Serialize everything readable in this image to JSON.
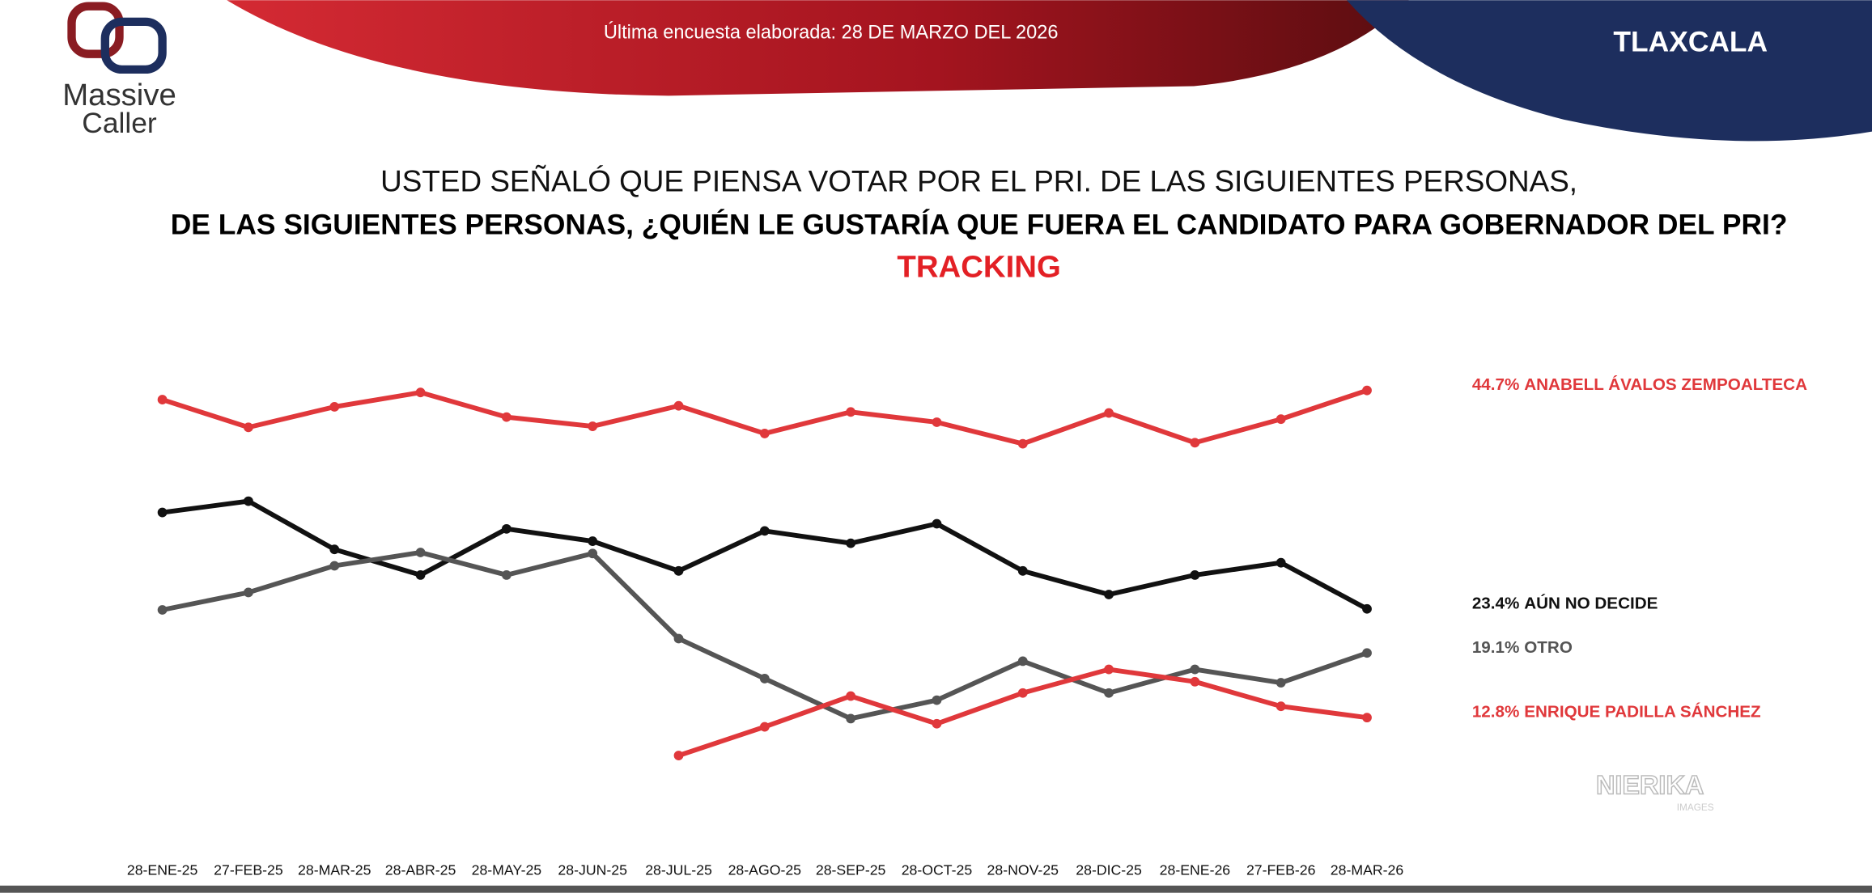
{
  "header": {
    "survey_date": "Última encuesta elaborada: 28 DE MARZO DEL 2026",
    "state": "TLAXCALA",
    "logo": [
      "Massive",
      "Caller"
    ]
  },
  "watermark": {
    "brand": "NIERIKA",
    "sub": "IMAGES"
  },
  "chart_data": {
    "type": "line",
    "title": "USTED SEÑALÓ QUE PIENSA VOTAR POR EL PRI. DE LAS SIGUIENTES PERSONAS,",
    "subtitle": "DE LAS SIGUIENTES PERSONAS, ¿QUIÉN LE GUSTARÍA QUE FUERA EL CANDIDATO PARA GOBERNADOR DEL PRI?",
    "annotation": "TRACKING",
    "categories": [
      "28-ENE-25",
      "27-FEB-25",
      "28-MAR-25",
      "28-ABR-25",
      "28-MAY-25",
      "28-JUN-25",
      "28-JUL-25",
      "28-AGO-25",
      "28-SEP-25",
      "28-OCT-25",
      "28-NOV-25",
      "28-DIC-25",
      "28-ENE-26",
      "27-FEB-26",
      "28-MAR-26"
    ],
    "series": [
      {
        "name": "ANABELL ÁVALOS ZEMPOALTECA",
        "color": "#e0383b",
        "values": [
          43.8,
          41.1,
          43.1,
          44.5,
          42.1,
          41.2,
          43.2,
          40.5,
          42.6,
          41.6,
          39.5,
          42.5,
          39.6,
          41.9,
          44.7
        ],
        "value_labels": [
          null,
          null,
          null,
          null,
          null,
          null,
          null,
          null,
          null,
          null,
          null,
          null,
          null,
          null,
          "44.7%"
        ]
      },
      {
        "name": "AÚN NO DECIDE",
        "color": "#111111",
        "values": [
          32.8,
          33.9,
          29.2,
          26.7,
          31.2,
          30.0,
          27.1,
          31.0,
          29.8,
          31.7,
          27.1,
          24.8,
          26.7,
          27.9,
          23.4
        ],
        "value_labels": [
          null,
          null,
          null,
          null,
          null,
          null,
          null,
          null,
          null,
          null,
          null,
          null,
          null,
          null,
          "23.4%"
        ]
      },
      {
        "name": "OTRO",
        "color": "#555555",
        "values": [
          23.3,
          25.0,
          27.6,
          28.9,
          26.7,
          28.8,
          20.5,
          16.6,
          12.7,
          14.5,
          18.3,
          15.2,
          17.5,
          16.2,
          19.1
        ],
        "value_labels": [
          null,
          null,
          null,
          null,
          null,
          null,
          null,
          null,
          null,
          null,
          null,
          null,
          null,
          null,
          "19.1%"
        ]
      },
      {
        "name": "ENRIQUE PADILLA SÁNCHEZ",
        "color": "#e0383b",
        "values": [
          null,
          null,
          null,
          null,
          null,
          null,
          9.1,
          11.9,
          14.9,
          12.2,
          15.2,
          17.5,
          16.3,
          13.9,
          12.8
        ],
        "value_labels": [
          null,
          null,
          null,
          null,
          null,
          null,
          null,
          null,
          null,
          null,
          null,
          null,
          null,
          null,
          "12.8%"
        ]
      }
    ]
  }
}
